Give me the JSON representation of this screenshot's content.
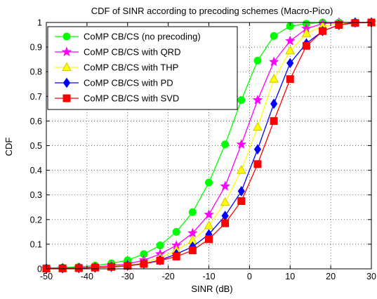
{
  "chart_data": {
    "type": "line",
    "title": "CDF of SINR according to precoding schemes (Macro-Pico)",
    "xlabel": "SINR (dB)",
    "ylabel": "CDF",
    "xlim": [
      -50,
      30
    ],
    "ylim": [
      0,
      1
    ],
    "xticks": [
      "-50",
      "-40",
      "-30",
      "-20",
      "-10",
      "0",
      "10",
      "20",
      "30"
    ],
    "yticks": [
      "0",
      "0.1",
      "0.2",
      "0.3",
      "0.4",
      "0.5",
      "0.6",
      "0.7",
      "0.8",
      "0.9",
      "1"
    ],
    "grid": "dotted",
    "legend_position": "top-left",
    "x": [
      -50,
      -46,
      -42,
      -38,
      -34,
      -30,
      -26,
      -22,
      -18,
      -14,
      -10,
      -6,
      -2,
      2,
      6,
      10,
      14,
      18,
      22,
      26,
      30
    ],
    "series": [
      {
        "name": "CoMP CB/CS (no precoding)",
        "color": "#00ff00",
        "marker": "circle",
        "x": [
          -50,
          -46,
          -42,
          -38,
          -34,
          -30,
          -26,
          -22,
          -18,
          -14,
          -10,
          -6,
          -2,
          2,
          6,
          10,
          14,
          18,
          22,
          26,
          30
        ],
        "values": [
          0.003,
          0.005,
          0.008,
          0.013,
          0.022,
          0.035,
          0.06,
          0.095,
          0.15,
          0.23,
          0.35,
          0.505,
          0.685,
          0.845,
          0.945,
          0.985,
          0.995,
          1.0,
          1.0,
          1.0,
          1.0
        ]
      },
      {
        "name": "CoMP CB/CS with QRD",
        "color": "#ff00ff",
        "marker": "star",
        "x": [
          -50,
          -46,
          -42,
          -38,
          -34,
          -30,
          -26,
          -22,
          -18,
          -14,
          -10,
          -6,
          -2,
          2,
          6,
          10,
          14,
          18,
          22,
          26,
          30
        ],
        "values": [
          0.002,
          0.003,
          0.005,
          0.008,
          0.013,
          0.02,
          0.035,
          0.06,
          0.095,
          0.145,
          0.22,
          0.335,
          0.505,
          0.685,
          0.84,
          0.925,
          0.975,
          0.995,
          1.0,
          1.0,
          1.0
        ]
      },
      {
        "name": "CoMP CB/CS with THP",
        "color": "#ffff00",
        "marker": "triangle",
        "x": [
          -50,
          -46,
          -42,
          -38,
          -34,
          -30,
          -26,
          -22,
          -18,
          -14,
          -10,
          -6,
          -2,
          2,
          6,
          10,
          14,
          18,
          22,
          26,
          30
        ],
        "values": [
          0.001,
          0.002,
          0.004,
          0.006,
          0.01,
          0.015,
          0.025,
          0.045,
          0.075,
          0.115,
          0.175,
          0.27,
          0.4,
          0.575,
          0.77,
          0.885,
          0.955,
          0.985,
          0.995,
          1.0,
          1.0
        ]
      },
      {
        "name": "CoMP CB/CS with PD",
        "color": "#0000ff",
        "marker": "diamond",
        "x": [
          -50,
          -46,
          -42,
          -38,
          -34,
          -30,
          -26,
          -22,
          -18,
          -14,
          -10,
          -6,
          -2,
          2,
          6,
          10,
          14,
          18,
          22,
          26,
          30
        ],
        "values": [
          0.001,
          0.002,
          0.003,
          0.005,
          0.008,
          0.013,
          0.021,
          0.035,
          0.06,
          0.09,
          0.14,
          0.215,
          0.315,
          0.485,
          0.67,
          0.835,
          0.915,
          0.965,
          0.99,
          1.0,
          1.0
        ]
      },
      {
        "name": "CoMP CB/CS with SVD",
        "color": "#ff0000",
        "marker": "square",
        "x": [
          -50,
          -46,
          -42,
          -38,
          -34,
          -30,
          -26,
          -22,
          -18,
          -14,
          -10,
          -6,
          -2,
          2,
          6,
          10,
          14,
          18,
          22,
          26,
          30
        ],
        "values": [
          0.001,
          0.002,
          0.003,
          0.005,
          0.008,
          0.012,
          0.02,
          0.033,
          0.05,
          0.075,
          0.12,
          0.185,
          0.275,
          0.425,
          0.6,
          0.77,
          0.905,
          0.965,
          0.99,
          0.998,
          1.0
        ]
      }
    ]
  }
}
